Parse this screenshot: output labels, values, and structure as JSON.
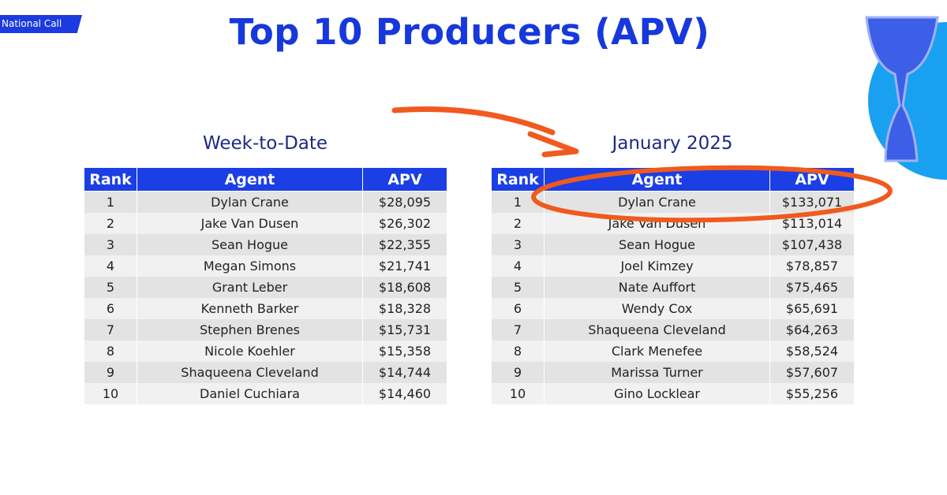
{
  "tag": "National Call",
  "title": "Top 10 Producers (APV)",
  "tables": [
    {
      "title": "Week-to-Date",
      "headers": [
        "Rank",
        "Agent",
        "APV"
      ],
      "rows": [
        [
          "1",
          "Dylan Crane",
          "$28,095"
        ],
        [
          "2",
          "Jake Van Dusen",
          "$26,302"
        ],
        [
          "3",
          "Sean Hogue",
          "$22,355"
        ],
        [
          "4",
          "Megan Simons",
          "$21,741"
        ],
        [
          "5",
          "Grant Leber",
          "$18,608"
        ],
        [
          "6",
          "Kenneth Barker",
          "$18,328"
        ],
        [
          "7",
          "Stephen Brenes",
          "$15,731"
        ],
        [
          "8",
          "Nicole Koehler",
          "$15,358"
        ],
        [
          "9",
          "Shaqueena Cleveland",
          "$14,744"
        ],
        [
          "10",
          "Daniel Cuchiara",
          "$14,460"
        ]
      ]
    },
    {
      "title": "January 2025",
      "headers": [
        "Rank",
        "Agent",
        "APV"
      ],
      "rows": [
        [
          "1",
          "Dylan Crane",
          "$133,071"
        ],
        [
          "2",
          "Jake Van Dusen",
          "$113,014"
        ],
        [
          "3",
          "Sean Hogue",
          "$107,438"
        ],
        [
          "4",
          "Joel Kimzey",
          "$78,857"
        ],
        [
          "5",
          "Nate Auffort",
          "$75,465"
        ],
        [
          "6",
          "Wendy Cox",
          "$65,691"
        ],
        [
          "7",
          "Shaqueena Cleveland",
          "$64,263"
        ],
        [
          "8",
          "Clark Menefee",
          "$58,524"
        ],
        [
          "9",
          "Marissa Turner",
          "$57,607"
        ],
        [
          "10",
          "Gino Locklear",
          "$55,256"
        ]
      ]
    }
  ]
}
